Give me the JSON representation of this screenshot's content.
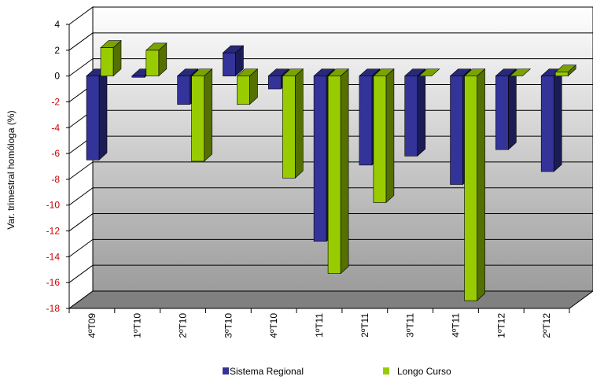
{
  "chart_data": {
    "type": "bar",
    "ylabel": "Var. trimestral homóloga (%)",
    "ylim": [
      -18,
      4
    ],
    "yticks": [
      4,
      2,
      0,
      -2,
      -4,
      -6,
      -8,
      -10,
      -12,
      -14,
      -16,
      -18
    ],
    "categories": [
      "4ºT09",
      "1ºT10",
      "2ºT10",
      "3ºT10",
      "4ºT10",
      "1ºT11",
      "2ºT11",
      "3ºT11",
      "4ºT11",
      "1ºT12",
      "2ºT12"
    ],
    "series": [
      {
        "name": "Sistema Regional",
        "values": [
          -6.5,
          -0.1,
          -2.2,
          1.8,
          -1.0,
          -12.8,
          -6.9,
          -6.2,
          -8.4,
          -5.7,
          -7.4
        ]
      },
      {
        "name": "Longo Curso",
        "values": [
          2.2,
          2.0,
          -6.6,
          -2.2,
          -7.9,
          -15.3,
          -9.8,
          0.0,
          -17.4,
          0.0,
          0.3
        ]
      }
    ],
    "colors": {
      "series": [
        "#33339a",
        "#99cc00"
      ],
      "positive_tick": "#000000",
      "negative_tick": "#cc0000"
    },
    "grid": true,
    "legend": "bottom"
  }
}
